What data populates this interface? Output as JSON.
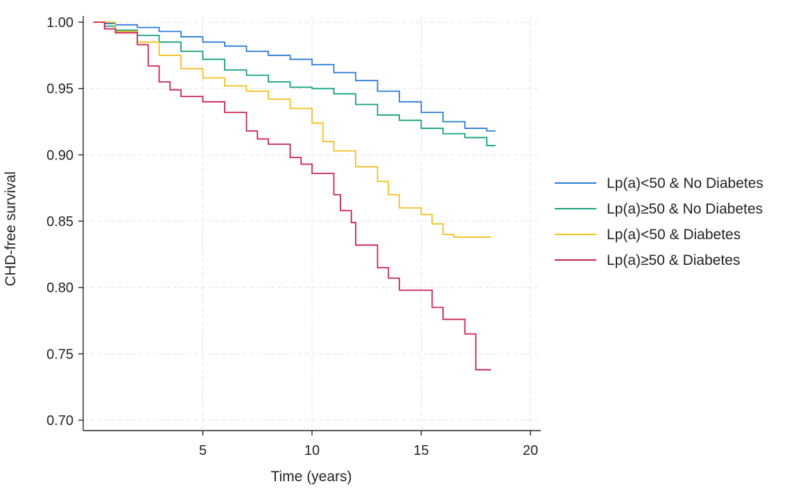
{
  "chart_data": {
    "type": "line",
    "step": true,
    "title": "",
    "xlabel": "Time (years)",
    "ylabel": "CHD-free survival",
    "xlim": [
      0,
      20
    ],
    "ylim": [
      0.695,
      1.005
    ],
    "xticks": [
      5,
      10,
      15,
      20
    ],
    "yticks": [
      0.7,
      0.75,
      0.8,
      0.85,
      0.9,
      0.95,
      1.0
    ],
    "ytick_labels": [
      "0.70",
      "0.75",
      "0.80",
      "0.85",
      "0.90",
      "0.95",
      "1.00"
    ],
    "grid": true,
    "legend_position": "right",
    "series": [
      {
        "name": "Lp(a)<50 & No Diabetes",
        "color": "#2b7bd6",
        "x": [
          0,
          0.5,
          1,
          2,
          3,
          4,
          5,
          6,
          7,
          8,
          9,
          10,
          11,
          12,
          13,
          14,
          15,
          16,
          17,
          18,
          18.4
        ],
        "y": [
          1.0,
          0.999,
          0.998,
          0.996,
          0.993,
          0.989,
          0.985,
          0.982,
          0.978,
          0.975,
          0.972,
          0.968,
          0.962,
          0.956,
          0.948,
          0.94,
          0.932,
          0.925,
          0.92,
          0.918,
          0.918
        ]
      },
      {
        "name": "Lp(a)≥50 & No Diabetes",
        "color": "#13a07c",
        "x": [
          0,
          0.5,
          1,
          2,
          3,
          4,
          5,
          6,
          7,
          8,
          9,
          10,
          11,
          12,
          13,
          14,
          15,
          16,
          17,
          18,
          18.4
        ],
        "y": [
          1.0,
          0.997,
          0.994,
          0.99,
          0.985,
          0.978,
          0.972,
          0.964,
          0.96,
          0.955,
          0.951,
          0.95,
          0.946,
          0.938,
          0.93,
          0.926,
          0.92,
          0.916,
          0.913,
          0.907,
          0.907
        ]
      },
      {
        "name": "Lp(a)<50 & Diabetes",
        "color": "#f4bf1c",
        "x": [
          0,
          1,
          2,
          3,
          4,
          5,
          6,
          7,
          8,
          9,
          10,
          10.5,
          11,
          12,
          13,
          13.5,
          14,
          15,
          15.5,
          16,
          16.5,
          17,
          18,
          18.2
        ],
        "y": [
          1.0,
          0.993,
          0.985,
          0.975,
          0.965,
          0.958,
          0.952,
          0.948,
          0.942,
          0.935,
          0.924,
          0.91,
          0.903,
          0.891,
          0.88,
          0.87,
          0.86,
          0.855,
          0.848,
          0.84,
          0.838,
          0.838,
          0.838,
          0.838
        ]
      },
      {
        "name": "Lp(a)≥50 & Diabetes",
        "color": "#cc2152",
        "x": [
          0,
          0.5,
          1,
          2,
          2.5,
          3,
          3.5,
          4,
          5,
          6,
          7,
          7.5,
          8,
          9,
          9.5,
          10,
          11,
          11.3,
          11.8,
          12,
          13,
          13.5,
          14,
          15,
          15.5,
          16,
          17,
          17.5,
          18.2
        ],
        "y": [
          1.0,
          0.995,
          0.992,
          0.983,
          0.967,
          0.955,
          0.949,
          0.944,
          0.94,
          0.932,
          0.918,
          0.912,
          0.908,
          0.898,
          0.893,
          0.886,
          0.87,
          0.858,
          0.849,
          0.832,
          0.815,
          0.807,
          0.798,
          0.798,
          0.785,
          0.776,
          0.765,
          0.738,
          0.738
        ]
      }
    ]
  }
}
